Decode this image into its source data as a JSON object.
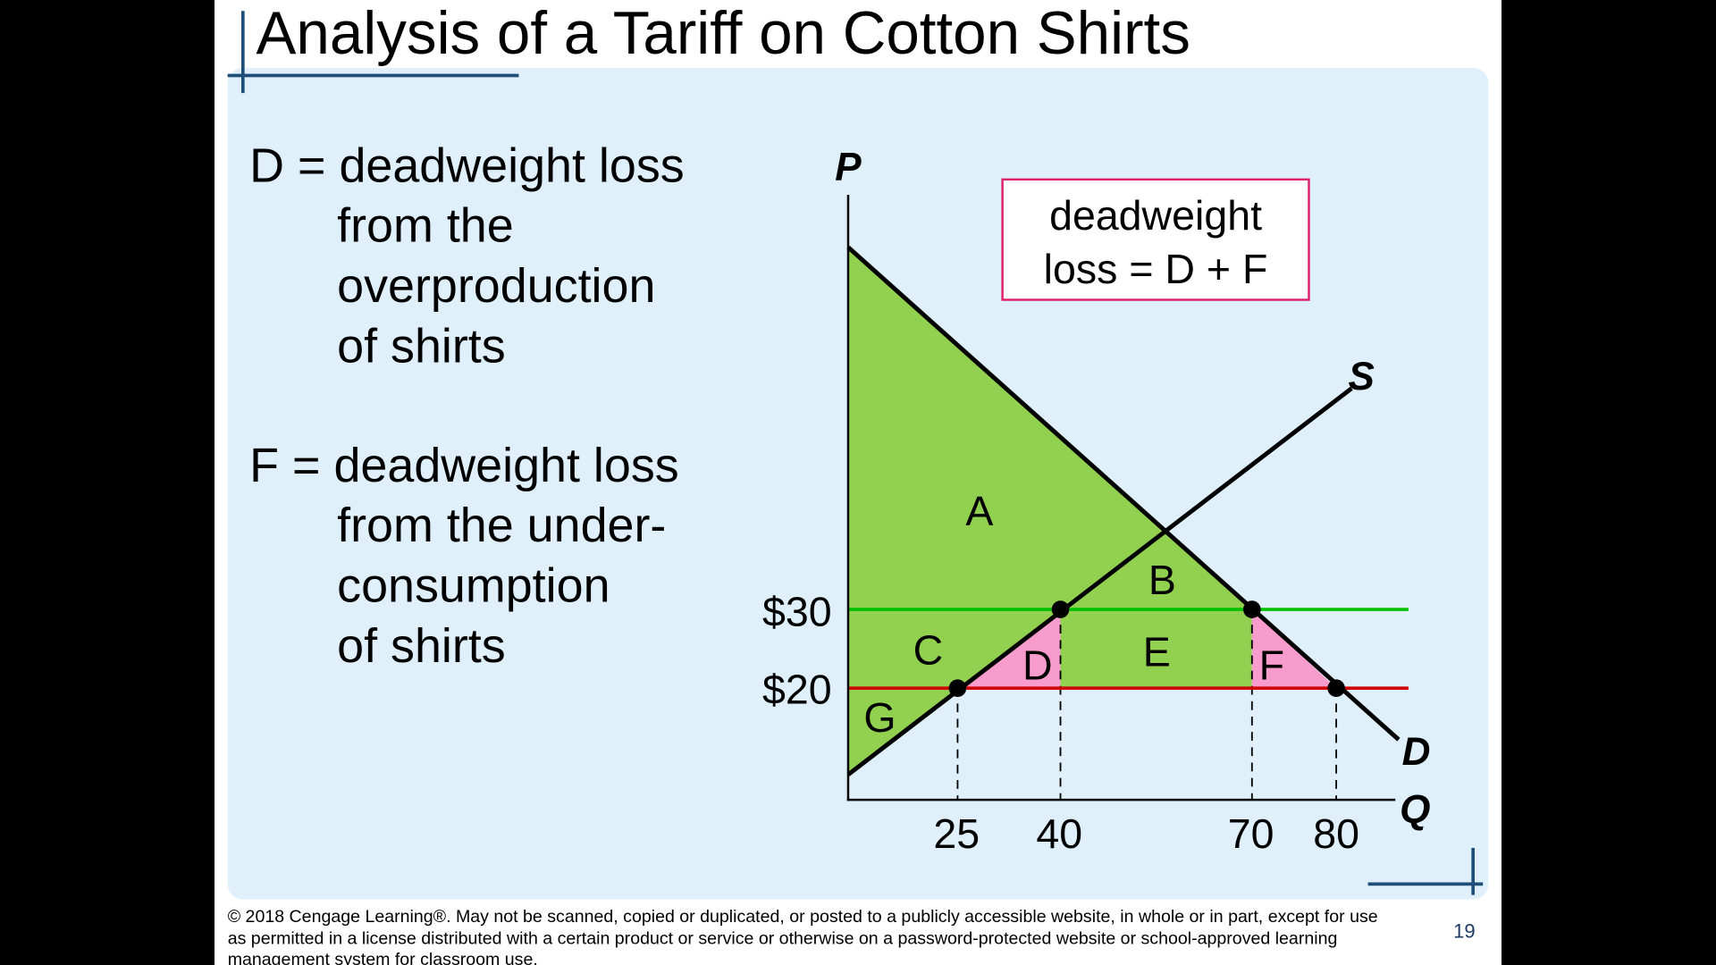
{
  "header": {
    "title": "Analysis of a Tariff on Cotton Shirts"
  },
  "notes": [
    {
      "lines": [
        "D = deadweight loss",
        "from the",
        "overproduction",
        "of shirts"
      ]
    },
    {
      "lines": [
        "F = deadweight loss",
        "from the under-",
        "consumption",
        "of shirts"
      ]
    }
  ],
  "diagram": {
    "y_axis_label": "P",
    "x_axis_label": "Q",
    "supply_label": "S",
    "demand_label": "D",
    "price_labels": [
      "$30",
      "$20"
    ],
    "quantity_labels": [
      "25",
      "40",
      "70",
      "80"
    ],
    "areas": [
      "A",
      "B",
      "C",
      "D",
      "E",
      "F",
      "G"
    ],
    "callout": [
      "deadweight",
      "loss = D + F"
    ]
  },
  "footer": {
    "copyright": [
      "© 2018 Cengage Learning®. May not be scanned, copied or duplicated, or posted to a publicly accessible website, in whole or in part, except for use",
      "as permitted in a license distributed with a certain product or service or otherwise on a password-protected website or school-approved learning",
      "management system for classroom use."
    ],
    "page_number": "19"
  }
}
